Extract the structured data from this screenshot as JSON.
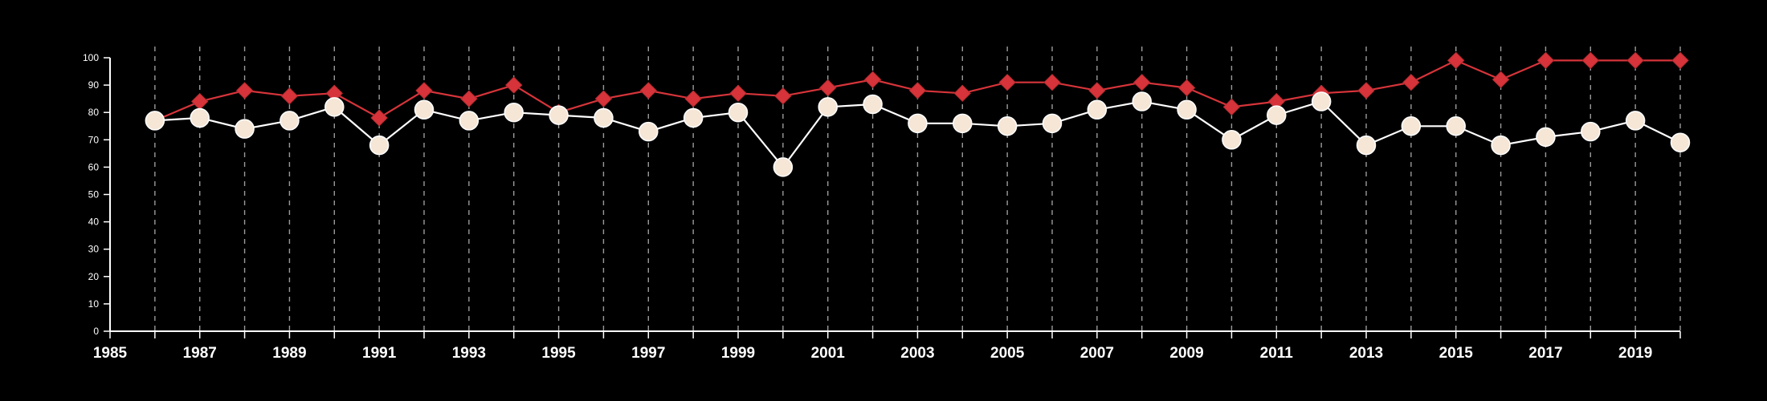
{
  "chart_data": {
    "type": "line",
    "title": "",
    "xlabel": "",
    "ylabel": "",
    "xlim": [
      1985,
      2020
    ],
    "ylim": [
      0,
      100
    ],
    "x_ticks": [
      "1985",
      "1987",
      "1989",
      "1991",
      "1993",
      "1995",
      "1997",
      "1999",
      "2001",
      "2003",
      "2005",
      "2007",
      "2009",
      "2011",
      "2013",
      "2015",
      "2017",
      "2019"
    ],
    "y_ticks": [
      "0",
      "10",
      "20",
      "30",
      "40",
      "50",
      "60",
      "70",
      "80",
      "90",
      "100"
    ],
    "grid": "vertical dashed lines at each year",
    "x": [
      1986,
      1987,
      1988,
      1989,
      1990,
      1991,
      1992,
      1993,
      1994,
      1995,
      1996,
      1997,
      1998,
      1999,
      2000,
      2001,
      2002,
      2003,
      2004,
      2005,
      2006,
      2007,
      2008,
      2009,
      2010,
      2011,
      2012,
      2013,
      2014,
      2015,
      2016,
      2017,
      2018,
      2019,
      2020
    ],
    "series": [
      {
        "marker": "diamond",
        "color": "#d6343a",
        "values": [
          77,
          84,
          88,
          86,
          87,
          78,
          88,
          85,
          90,
          80,
          85,
          88,
          85,
          87,
          86,
          89,
          92,
          88,
          87,
          91,
          91,
          88,
          91,
          89,
          82,
          84,
          87,
          88,
          91,
          99,
          92,
          99,
          99,
          99,
          99
        ]
      },
      {
        "marker": "circle",
        "color": "#f6e6d6",
        "line_color": "#ffffff",
        "values": [
          77,
          78,
          74,
          77,
          82,
          68,
          81,
          77,
          80,
          79,
          78,
          73,
          78,
          80,
          60,
          82,
          83,
          76,
          76,
          75,
          76,
          81,
          84,
          81,
          70,
          79,
          84,
          68,
          75,
          75,
          68,
          71,
          73,
          77,
          69
        ]
      }
    ]
  }
}
